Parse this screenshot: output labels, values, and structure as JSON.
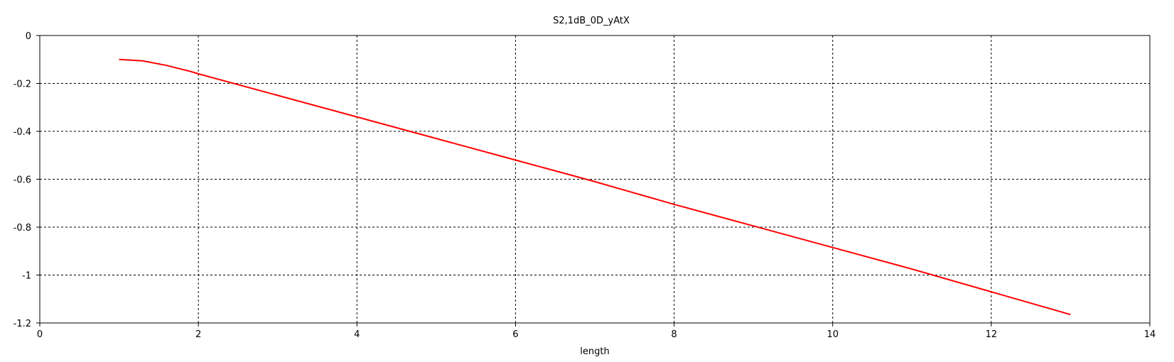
{
  "chart_data": {
    "type": "line",
    "title": "S2,1dB_0D_yAtX",
    "xlabel": "length",
    "ylabel": "",
    "xlim": [
      0,
      14
    ],
    "ylim": [
      -1.2,
      0
    ],
    "xticks": [
      "0",
      "2",
      "4",
      "6",
      "8",
      "10",
      "12",
      "14"
    ],
    "yticks": [
      "0",
      "-0.2",
      "-0.4",
      "-0.6",
      "-0.8",
      "-1",
      "-1.2"
    ],
    "grid": true,
    "legend": "none",
    "series": [
      {
        "color": "#ff0000",
        "x": [
          1.0,
          1.3,
          1.6,
          1.9,
          2.0,
          2.5,
          3.0,
          4.0,
          5.0,
          6.0,
          7.0,
          8.0,
          9.0,
          10.0,
          11.0,
          12.0,
          13.0
        ],
        "y": [
          -0.1,
          -0.106,
          -0.125,
          -0.15,
          -0.16,
          -0.205,
          -0.25,
          -0.34,
          -0.43,
          -0.52,
          -0.61,
          -0.705,
          -0.795,
          -0.885,
          -0.975,
          -1.07,
          -1.165
        ]
      }
    ]
  }
}
